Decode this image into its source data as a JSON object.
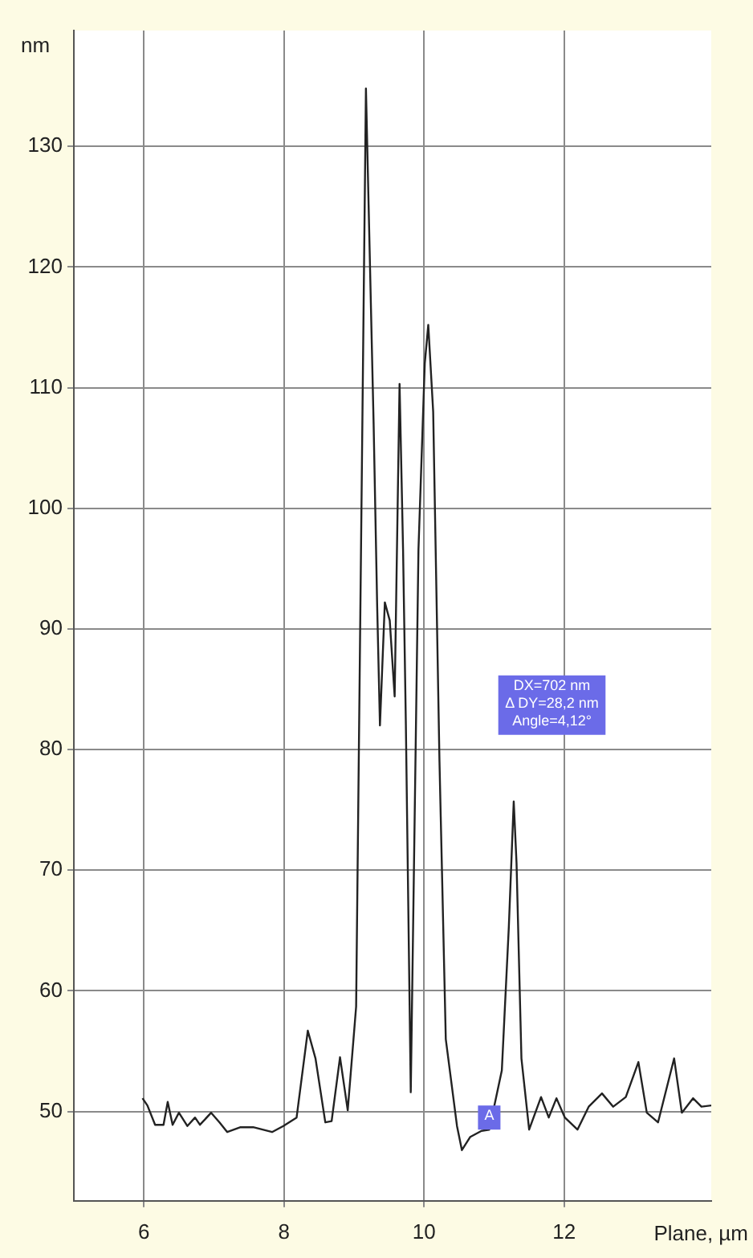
{
  "chart_data": {
    "type": "line",
    "xlabel": "Plane, µm",
    "ylabel": "nm",
    "x": [
      5.98,
      6.05,
      6.16,
      6.28,
      6.34,
      6.41,
      6.5,
      6.62,
      6.73,
      6.8,
      6.96,
      7.08,
      7.19,
      7.38,
      7.56,
      7.83,
      7.99,
      8.18,
      8.34,
      8.45,
      8.59,
      8.68,
      8.8,
      8.91,
      9.03,
      9.17,
      9.28,
      9.33,
      9.37,
      9.44,
      9.51,
      9.58,
      9.65,
      9.7,
      9.74,
      9.81,
      9.92,
      10.01,
      10.06,
      10.13,
      10.22,
      10.31,
      10.47,
      10.54,
      10.66,
      10.82,
      10.93,
      11.0,
      11.11,
      11.21,
      11.28,
      11.32,
      11.39,
      11.5,
      11.67,
      11.78,
      11.89,
      12.01,
      12.19,
      12.35,
      12.54,
      12.7,
      12.88,
      13.06,
      13.18,
      13.34,
      13.57,
      13.68,
      13.84,
      13.96,
      14.1
    ],
    "series": [
      {
        "color": "#222222",
        "values": [
          51.1,
          50.5,
          48.9,
          48.9,
          50.8,
          48.9,
          49.9,
          48.8,
          49.5,
          48.9,
          49.9,
          49.1,
          48.3,
          48.7,
          48.7,
          48.3,
          48.8,
          49.5,
          56.7,
          54.4,
          49.1,
          49.2,
          54.5,
          50.1,
          58.7,
          134.8,
          106.9,
          92,
          82,
          92.2,
          90.7,
          84.4,
          110.3,
          96.6,
          82.1,
          51.6,
          96.6,
          112,
          115.2,
          108,
          79,
          56,
          48.8,
          46.8,
          47.9,
          48.4,
          48.5,
          50.4,
          53.4,
          65.3,
          75.7,
          70.6,
          54.4,
          48.5,
          51.2,
          49.5,
          51.1,
          49.5,
          48.5,
          50.4,
          51.5,
          50.4,
          51.2,
          54.1,
          49.9,
          49.1,
          54.4,
          49.9,
          51.1,
          50.4,
          50.5
        ]
      }
    ],
    "xlim": [
      5,
      14.1
    ],
    "xticks": [
      6,
      8,
      10,
      12
    ],
    "ylim": [
      42.6,
      139.6
    ],
    "yticks": [
      50,
      60,
      70,
      80,
      90,
      100,
      110,
      120,
      130
    ],
    "grid": true,
    "legend": false,
    "marker": "none",
    "line_style": "solid",
    "annotations": [
      "DX=702 nm\nΔ DY=28,2 nm\nAngle=4,12°",
      {
        "text": "A",
        "x": 10.93,
        "y": 49.5
      }
    ]
  }
}
